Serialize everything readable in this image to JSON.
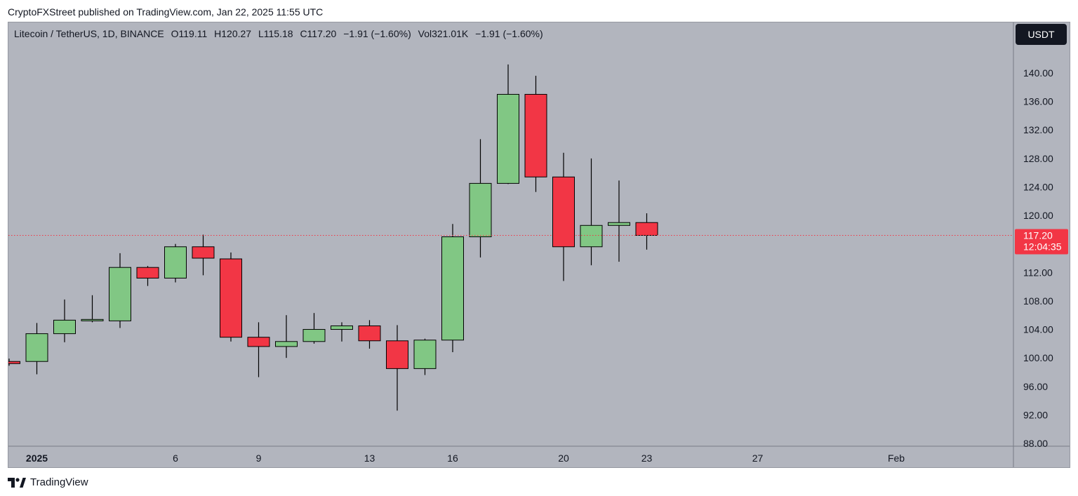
{
  "header": {
    "published": "CryptoFXStreet published on TradingView.com, Jan 22, 2025 11:55 UTC"
  },
  "legend": {
    "symbol": "Litecoin / TetherUS, 1D, BINANCE",
    "open": "O119.11",
    "high": "H120.27",
    "low": "L115.18",
    "close": "C117.20",
    "change": "−1.91 (−1.60%)",
    "volume": "Vol321.01K",
    "volume_change": "−1.91 (−1.60%)"
  },
  "currency_button": "USDT",
  "price_label": {
    "price": "117.20",
    "countdown": "12:04:35"
  },
  "footer": {
    "brand": "TradingView"
  },
  "colors": {
    "up": "#81c784",
    "down": "#f23645",
    "background": "#b2b5be",
    "price_line": "#f23645"
  },
  "chart_data": {
    "type": "candlestick",
    "ylim": [
      88,
      141
    ],
    "y_ticks": [
      "140.00",
      "136.00",
      "132.00",
      "128.00",
      "124.00",
      "120.00",
      "112.00",
      "108.00",
      "104.00",
      "100.00",
      "96.00",
      "92.00",
      "88.00"
    ],
    "x_ticks": [
      {
        "label": "2025",
        "day": 1,
        "bold": true
      },
      {
        "label": "6",
        "day": 6
      },
      {
        "label": "9",
        "day": 9
      },
      {
        "label": "13",
        "day": 13
      },
      {
        "label": "16",
        "day": 16
      },
      {
        "label": "20",
        "day": 20
      },
      {
        "label": "23",
        "day": 23
      },
      {
        "label": "27",
        "day": 27
      },
      {
        "label": "Feb",
        "day": 32
      }
    ],
    "last_price": 117.2,
    "candles": [
      {
        "date": "2024-12-31",
        "open": 99.5,
        "high": 99.9,
        "low": 98.9,
        "close": 99.2
      },
      {
        "date": "2025-01-01",
        "open": 99.5,
        "high": 104.9,
        "low": 97.7,
        "close": 103.4
      },
      {
        "date": "2025-01-02",
        "open": 103.4,
        "high": 108.2,
        "low": 102.2,
        "close": 105.3
      },
      {
        "date": "2025-01-03",
        "open": 105.3,
        "high": 108.8,
        "low": 105.0,
        "close": 105.4
      },
      {
        "date": "2025-01-04",
        "open": 105.2,
        "high": 114.7,
        "low": 104.2,
        "close": 112.7
      },
      {
        "date": "2025-01-05",
        "open": 112.7,
        "high": 112.9,
        "low": 110.1,
        "close": 111.2
      },
      {
        "date": "2025-01-06",
        "open": 111.2,
        "high": 116.0,
        "low": 110.6,
        "close": 115.6
      },
      {
        "date": "2025-01-07",
        "open": 115.6,
        "high": 117.3,
        "low": 111.6,
        "close": 114.0
      },
      {
        "date": "2025-01-08",
        "open": 113.9,
        "high": 114.8,
        "low": 102.3,
        "close": 102.9
      },
      {
        "date": "2025-01-09",
        "open": 102.9,
        "high": 105.0,
        "low": 97.3,
        "close": 101.6
      },
      {
        "date": "2025-01-10",
        "open": 101.6,
        "high": 106.0,
        "low": 100.0,
        "close": 102.3
      },
      {
        "date": "2025-01-11",
        "open": 102.3,
        "high": 106.3,
        "low": 102.0,
        "close": 104.0
      },
      {
        "date": "2025-01-12",
        "open": 104.0,
        "high": 105.0,
        "low": 102.3,
        "close": 104.5
      },
      {
        "date": "2025-01-13",
        "open": 104.5,
        "high": 105.3,
        "low": 101.3,
        "close": 102.4
      },
      {
        "date": "2025-01-14",
        "open": 102.4,
        "high": 104.6,
        "low": 92.6,
        "close": 98.5
      },
      {
        "date": "2025-01-15",
        "open": 98.5,
        "high": 102.7,
        "low": 97.6,
        "close": 102.5
      },
      {
        "date": "2025-01-16",
        "open": 102.5,
        "high": 118.8,
        "low": 100.8,
        "close": 117.0
      },
      {
        "date": "2025-01-17",
        "open": 117.0,
        "high": 130.7,
        "low": 114.1,
        "close": 124.5
      },
      {
        "date": "2025-01-18",
        "open": 124.5,
        "high": 141.2,
        "low": 124.4,
        "close": 137.0
      },
      {
        "date": "2025-01-19",
        "open": 137.0,
        "high": 139.6,
        "low": 123.3,
        "close": 125.4
      },
      {
        "date": "2025-01-20",
        "open": 125.4,
        "high": 128.8,
        "low": 110.8,
        "close": 115.6
      },
      {
        "date": "2025-01-21",
        "open": 115.6,
        "high": 128.0,
        "low": 113.0,
        "close": 118.6
      },
      {
        "date": "2025-01-22",
        "open": 118.6,
        "high": 124.9,
        "low": 113.5,
        "close": 119.0
      },
      {
        "date": "2025-01-23",
        "open": 119.0,
        "high": 120.3,
        "low": 115.2,
        "close": 117.2
      }
    ]
  }
}
